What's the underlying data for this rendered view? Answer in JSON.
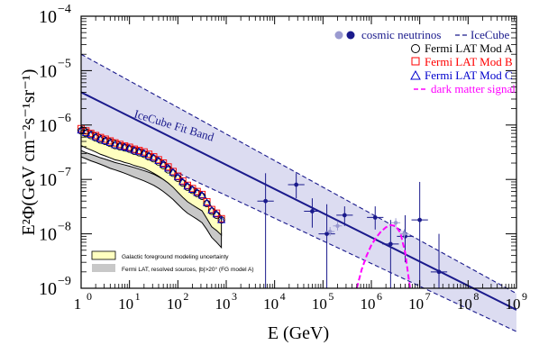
{
  "chart_data": {
    "type": "scatter",
    "xlabel": "E (GeV)",
    "ylabel": "E²Φ(GeV cm⁻²s⁻¹sr⁻¹)",
    "xscale": "log",
    "yscale": "log",
    "xlim": [
      1,
      1000000000
    ],
    "ylim": [
      1e-09,
      0.0001
    ],
    "x_ticks": [
      {
        "v": 1,
        "label": "1"
      },
      {
        "v": 10,
        "label": "10"
      },
      {
        "v": 100,
        "label": "10"
      },
      {
        "v": 1000,
        "label": "10"
      },
      {
        "v": 10000,
        "label": "10"
      },
      {
        "v": 100000,
        "label": "10"
      },
      {
        "v": 1000000,
        "label": "10"
      },
      {
        "v": 10000000,
        "label": "10"
      },
      {
        "v": 100000000,
        "label": "10"
      },
      {
        "v": 1000000000,
        "label": "10"
      }
    ],
    "x_tick_exponents": [
      "0",
      "1",
      "2",
      "3",
      "4",
      "5",
      "6",
      "7",
      "8",
      "9"
    ],
    "y_ticks": [
      {
        "v": 1e-09,
        "label": "10"
      },
      {
        "v": 1e-08,
        "label": "10"
      },
      {
        "v": 1e-07,
        "label": "10"
      },
      {
        "v": 1e-06,
        "label": "10"
      },
      {
        "v": 1e-05,
        "label": "10"
      },
      {
        "v": 0.0001,
        "label": "10"
      }
    ],
    "y_tick_exponents": [
      "−9",
      "−8",
      "−7",
      "−6",
      "−5",
      "−4"
    ],
    "annotation": "IceCube Fit Band",
    "legend": {
      "placement": "top-right",
      "entries": [
        {
          "label": "cosmic neutrinos",
          "color": "#1a1a8c"
        },
        {
          "label": "IceCube",
          "color": "#1a1a8c"
        },
        {
          "label": "Fermi LAT Mod A",
          "color": "#000000"
        },
        {
          "label": "Fermi LAT Mod B",
          "color": "#ff0000"
        },
        {
          "label": "Fermi LAT Mod C",
          "color": "#0000cc"
        },
        {
          "label": "dark matter signal",
          "color": "#ff00ff"
        }
      ]
    },
    "legend2": {
      "placement": "bottom-left",
      "entries": [
        {
          "label": "Galactic foreground modeling uncertainty",
          "color": "#ffffc0"
        },
        {
          "label": "Fermi LAT, resolved sources, |b|>20° (FG model A)",
          "color": "#c8c8c8"
        }
      ]
    },
    "icecube_fit": {
      "x": [
        1,
        1000000000
      ],
      "best": [
        4e-06,
        4e-10
      ],
      "upper": [
        2e-05,
        8e-10
      ],
      "lower": [
        9e-07,
        1.6e-10
      ]
    },
    "neutrino_points": {
      "color": "#1a1a8c",
      "points": [
        {
          "x": 6500,
          "y": 4e-08,
          "ylo": 1e-09,
          "yhi": 1.3e-07,
          "upper_limit": false
        },
        {
          "x": 28000,
          "y": 8e-08,
          "ylo": 4.5e-08,
          "yhi": 1.3e-07,
          "upper_limit": false
        },
        {
          "x": 60000,
          "y": 2.6e-08,
          "ylo": 1.3e-08,
          "yhi": 4.5e-08,
          "upper_limit": false
        },
        {
          "x": 120000,
          "y": 1e-08,
          "ylo": 1e-09,
          "yhi": 3.5e-08,
          "upper_limit": false
        },
        {
          "x": 280000,
          "y": 2.2e-08,
          "ylo": 1.4e-08,
          "yhi": 3.2e-08,
          "upper_limit": false
        },
        {
          "x": 1200000,
          "y": 2e-08,
          "ylo": 1.2e-08,
          "yhi": 3.2e-08,
          "upper_limit": false
        },
        {
          "x": 2500000,
          "y": 6.5e-09,
          "ylo": 1e-09,
          "yhi": 1.8e-08,
          "upper_limit": false
        },
        {
          "x": 5000000,
          "y": 9e-09,
          "ylo": 3e-09,
          "yhi": 2.2e-08,
          "upper_limit": false
        },
        {
          "x": 10000000,
          "y": 1.8e-08,
          "ylo": 1e-09,
          "yhi": 9e-08,
          "upper_limit": false
        },
        {
          "x": 25000000,
          "y": 2e-09,
          "ylo": 1e-09,
          "yhi": 1e-08,
          "upper_limit": false
        }
      ]
    },
    "neutrino_points_light": {
      "color": "#9a9ad0",
      "points": [
        {
          "x": 140000,
          "y": 1.1e-08
        },
        {
          "x": 200000,
          "y": 1.4e-08
        },
        {
          "x": 3200000,
          "y": 1.6e-08
        },
        {
          "x": 4800000,
          "y": 1e-08
        }
      ]
    },
    "fermi_x": [
      1.0,
      1.26,
      1.58,
      2.0,
      2.51,
      3.16,
      3.98,
      5.01,
      6.31,
      7.94,
      10.0,
      12.6,
      15.8,
      20.0,
      25.1,
      31.6,
      39.8,
      50.1,
      63.1,
      79.4,
      100,
      126,
      158,
      200,
      251,
      316,
      398,
      501,
      631,
      794
    ],
    "fermi_mod_a": [
      7.8e-07,
      7e-07,
      6.4e-07,
      5.8e-07,
      5.3e-07,
      5e-07,
      4.6e-07,
      4.2e-07,
      4e-07,
      3.8e-07,
      3.6e-07,
      3.3e-07,
      3.1e-07,
      2.9e-07,
      2.6e-07,
      2.4e-07,
      2.1e-07,
      1.8e-07,
      1.5e-07,
      1.3e-07,
      1.05e-07,
      8.6e-08,
      7.2e-08,
      6.3e-08,
      5.5e-08,
      4.9e-08,
      3.6e-08,
      2.6e-08,
      2.2e-08,
      1.8e-08
    ],
    "fermi_mod_b": [
      8.6e-07,
      7.8e-07,
      7e-07,
      6.4e-07,
      5.9e-07,
      5.5e-07,
      5.1e-07,
      4.7e-07,
      4.4e-07,
      4.1e-07,
      3.9e-07,
      3.6e-07,
      3.4e-07,
      3.2e-07,
      2.9e-07,
      2.6e-07,
      2.3e-07,
      2e-07,
      1.7e-07,
      1.4e-07,
      1.15e-07,
      9.4e-08,
      7.8e-08,
      6.8e-08,
      6e-08,
      5.3e-08,
      3.9e-08,
      2.8e-08,
      2.4e-08,
      1.9e-08
    ],
    "fermi_mod_c": [
      8e-07,
      7.2e-07,
      6.6e-07,
      6e-07,
      5.5e-07,
      5.1e-07,
      4.7e-07,
      4.3e-07,
      4.1e-07,
      3.9e-07,
      3.7e-07,
      3.4e-07,
      3.2e-07,
      3e-07,
      2.7e-07,
      2.5e-07,
      2.2e-07,
      1.9e-07,
      1.6e-07,
      1.35e-07,
      1.1e-07,
      9e-08,
      7.5e-08,
      6.5e-08,
      5.7e-08,
      5.1e-08,
      3.7e-08,
      2.7e-08,
      2.3e-08,
      1.8e-08
    ],
    "foreground_band": {
      "upper": [
        9.5e-07,
        8.6e-07,
        7.8e-07,
        7.1e-07,
        6.5e-07,
        6e-07,
        5.6e-07,
        5.2e-07,
        4.8e-07,
        4.5e-07,
        4.2e-07,
        3.9e-07,
        3.7e-07,
        3.4e-07,
        3.1e-07,
        2.8e-07,
        2.5e-07,
        2.2e-07,
        1.85e-07,
        1.55e-07,
        1.25e-07,
        1e-07,
        8.5e-08,
        7.4e-08,
        6.5e-08,
        5.8e-08,
        4.3e-08,
        3.1e-08,
        2.6e-08,
        2.1e-08
      ],
      "lower": [
        4.2e-07,
        3.8e-07,
        3.5e-07,
        3.2e-07,
        2.9e-07,
        2.7e-07,
        2.5e-07,
        2.3e-07,
        2.2e-07,
        2.05e-07,
        1.95e-07,
        1.8e-07,
        1.7e-07,
        1.6e-07,
        1.45e-07,
        1.3e-07,
        1.15e-07,
        1e-07,
        8.6e-08,
        7.2e-08,
        5.8e-08,
        4.7e-08,
        3.9e-08,
        3.4e-08,
        3e-08,
        2.65e-08,
        1.9e-08,
        1.35e-08,
        1.15e-08,
        9.5e-09
      ]
    },
    "resolved_band": {
      "upper": [
        3.4e-07,
        3.1e-07,
        2.9e-07,
        2.7e-07,
        2.5e-07,
        2.35e-07,
        2.2e-07,
        2.05e-07,
        1.95e-07,
        1.85e-07,
        1.75e-07,
        1.65e-07,
        1.55e-07,
        1.45e-07,
        1.35e-07,
        1.25e-07,
        1.12e-07,
        1e-07,
        8.6e-08,
        7.4e-08,
        6.2e-08,
        5.1e-08,
        4.4e-08,
        3.9e-08,
        3.5e-08,
        3.1e-08,
        2.2e-08,
        1.55e-08,
        1.3e-08,
        1.05e-08
      ],
      "lower": [
        2.6e-07,
        2.4e-07,
        2.2e-07,
        2.05e-07,
        1.9e-07,
        1.75e-07,
        1.6e-07,
        1.5e-07,
        1.4e-07,
        1.3e-07,
        1.2e-07,
        1.1e-07,
        1.02e-07,
        9.4e-08,
        8.6e-08,
        7.8e-08,
        6.9e-08,
        6e-08,
        5.1e-08,
        4.3e-08,
        3.5e-08,
        2.85e-08,
        2.4e-08,
        2.1e-08,
        1.85e-08,
        1.6e-08,
        1.2e-08,
        8.6e-09,
        7e-09,
        5.6e-09
      ]
    },
    "dark_matter": {
      "color": "#ff00ff",
      "x": [
        500000,
        630000,
        800000,
        1000000,
        1260000,
        1580000,
        2000000,
        2510000,
        3160000,
        3980000,
        5010000,
        6310000
      ],
      "y": [
        1e-09,
        2.2e-09,
        4e-09,
        6.2e-09,
        8.6e-09,
        1.1e-08,
        1.32e-08,
        1.45e-08,
        1.4e-08,
        1.05e-08,
        4.5e-09,
        1e-09
      ]
    }
  }
}
